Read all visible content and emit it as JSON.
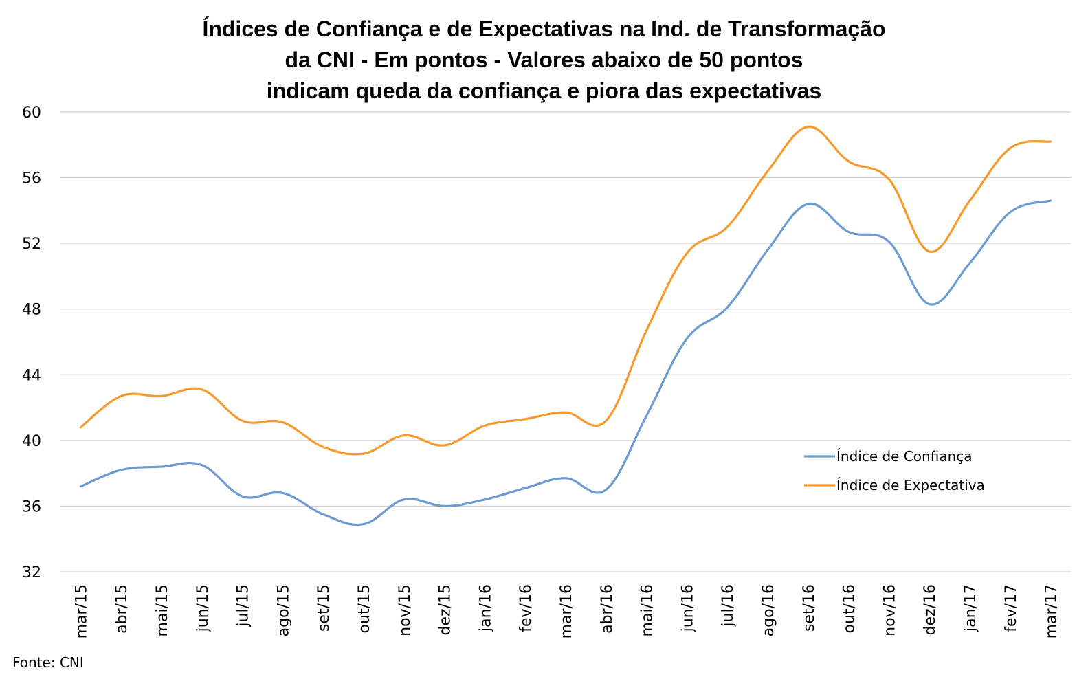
{
  "title_lines": [
    "Índices de Confiança e de Expectativas na Ind. de Transformação",
    "da CNI - Em pontos - Valores abaixo de 50 pontos",
    "indicam queda da confiança e piora das expectativas"
  ],
  "source": "Fonte: CNI",
  "chart_data": {
    "type": "line",
    "title": "Índices de Confiança e de Expectativas na Ind. de Transformação da CNI - Em pontos - Valores abaixo de 50 pontos indicam queda da confiança e piora das expectativas",
    "xlabel": "",
    "ylabel": "",
    "ylim": [
      32,
      60
    ],
    "yticks": [
      "32",
      "36",
      "40",
      "44",
      "48",
      "52",
      "56",
      "60"
    ],
    "grid": true,
    "legend_position": "right",
    "categories": [
      "mar/15",
      "abr/15",
      "mai/15",
      "jun/15",
      "jul/15",
      "ago/15",
      "set/15",
      "out/15",
      "nov/15",
      "dez/15",
      "jan/16",
      "fev/16",
      "mar/16",
      "abr/16",
      "mai/16",
      "jun/16",
      "jul/16",
      "ago/16",
      "set/16",
      "out/16",
      "nov/16",
      "dez/16",
      "jan/17",
      "fev/17",
      "mar/17"
    ],
    "series": [
      {
        "name": "Índice de Confiança",
        "color": "#6b9bd1",
        "values": [
          37.2,
          38.2,
          38.4,
          38.5,
          36.6,
          36.8,
          35.5,
          34.9,
          36.4,
          36.0,
          36.4,
          37.1,
          37.7,
          37.0,
          41.5,
          46.2,
          48.1,
          51.6,
          54.4,
          52.7,
          52.1,
          48.3,
          50.8,
          53.9,
          54.6
        ]
      },
      {
        "name": "Índice de Expectativa",
        "color": "#f79a2e",
        "values": [
          40.8,
          42.7,
          42.7,
          43.1,
          41.2,
          41.1,
          39.6,
          39.2,
          40.3,
          39.7,
          40.9,
          41.3,
          41.7,
          41.2,
          46.7,
          51.4,
          53.0,
          56.4,
          59.1,
          57.0,
          55.9,
          51.5,
          54.6,
          57.8,
          58.2
        ]
      }
    ]
  }
}
